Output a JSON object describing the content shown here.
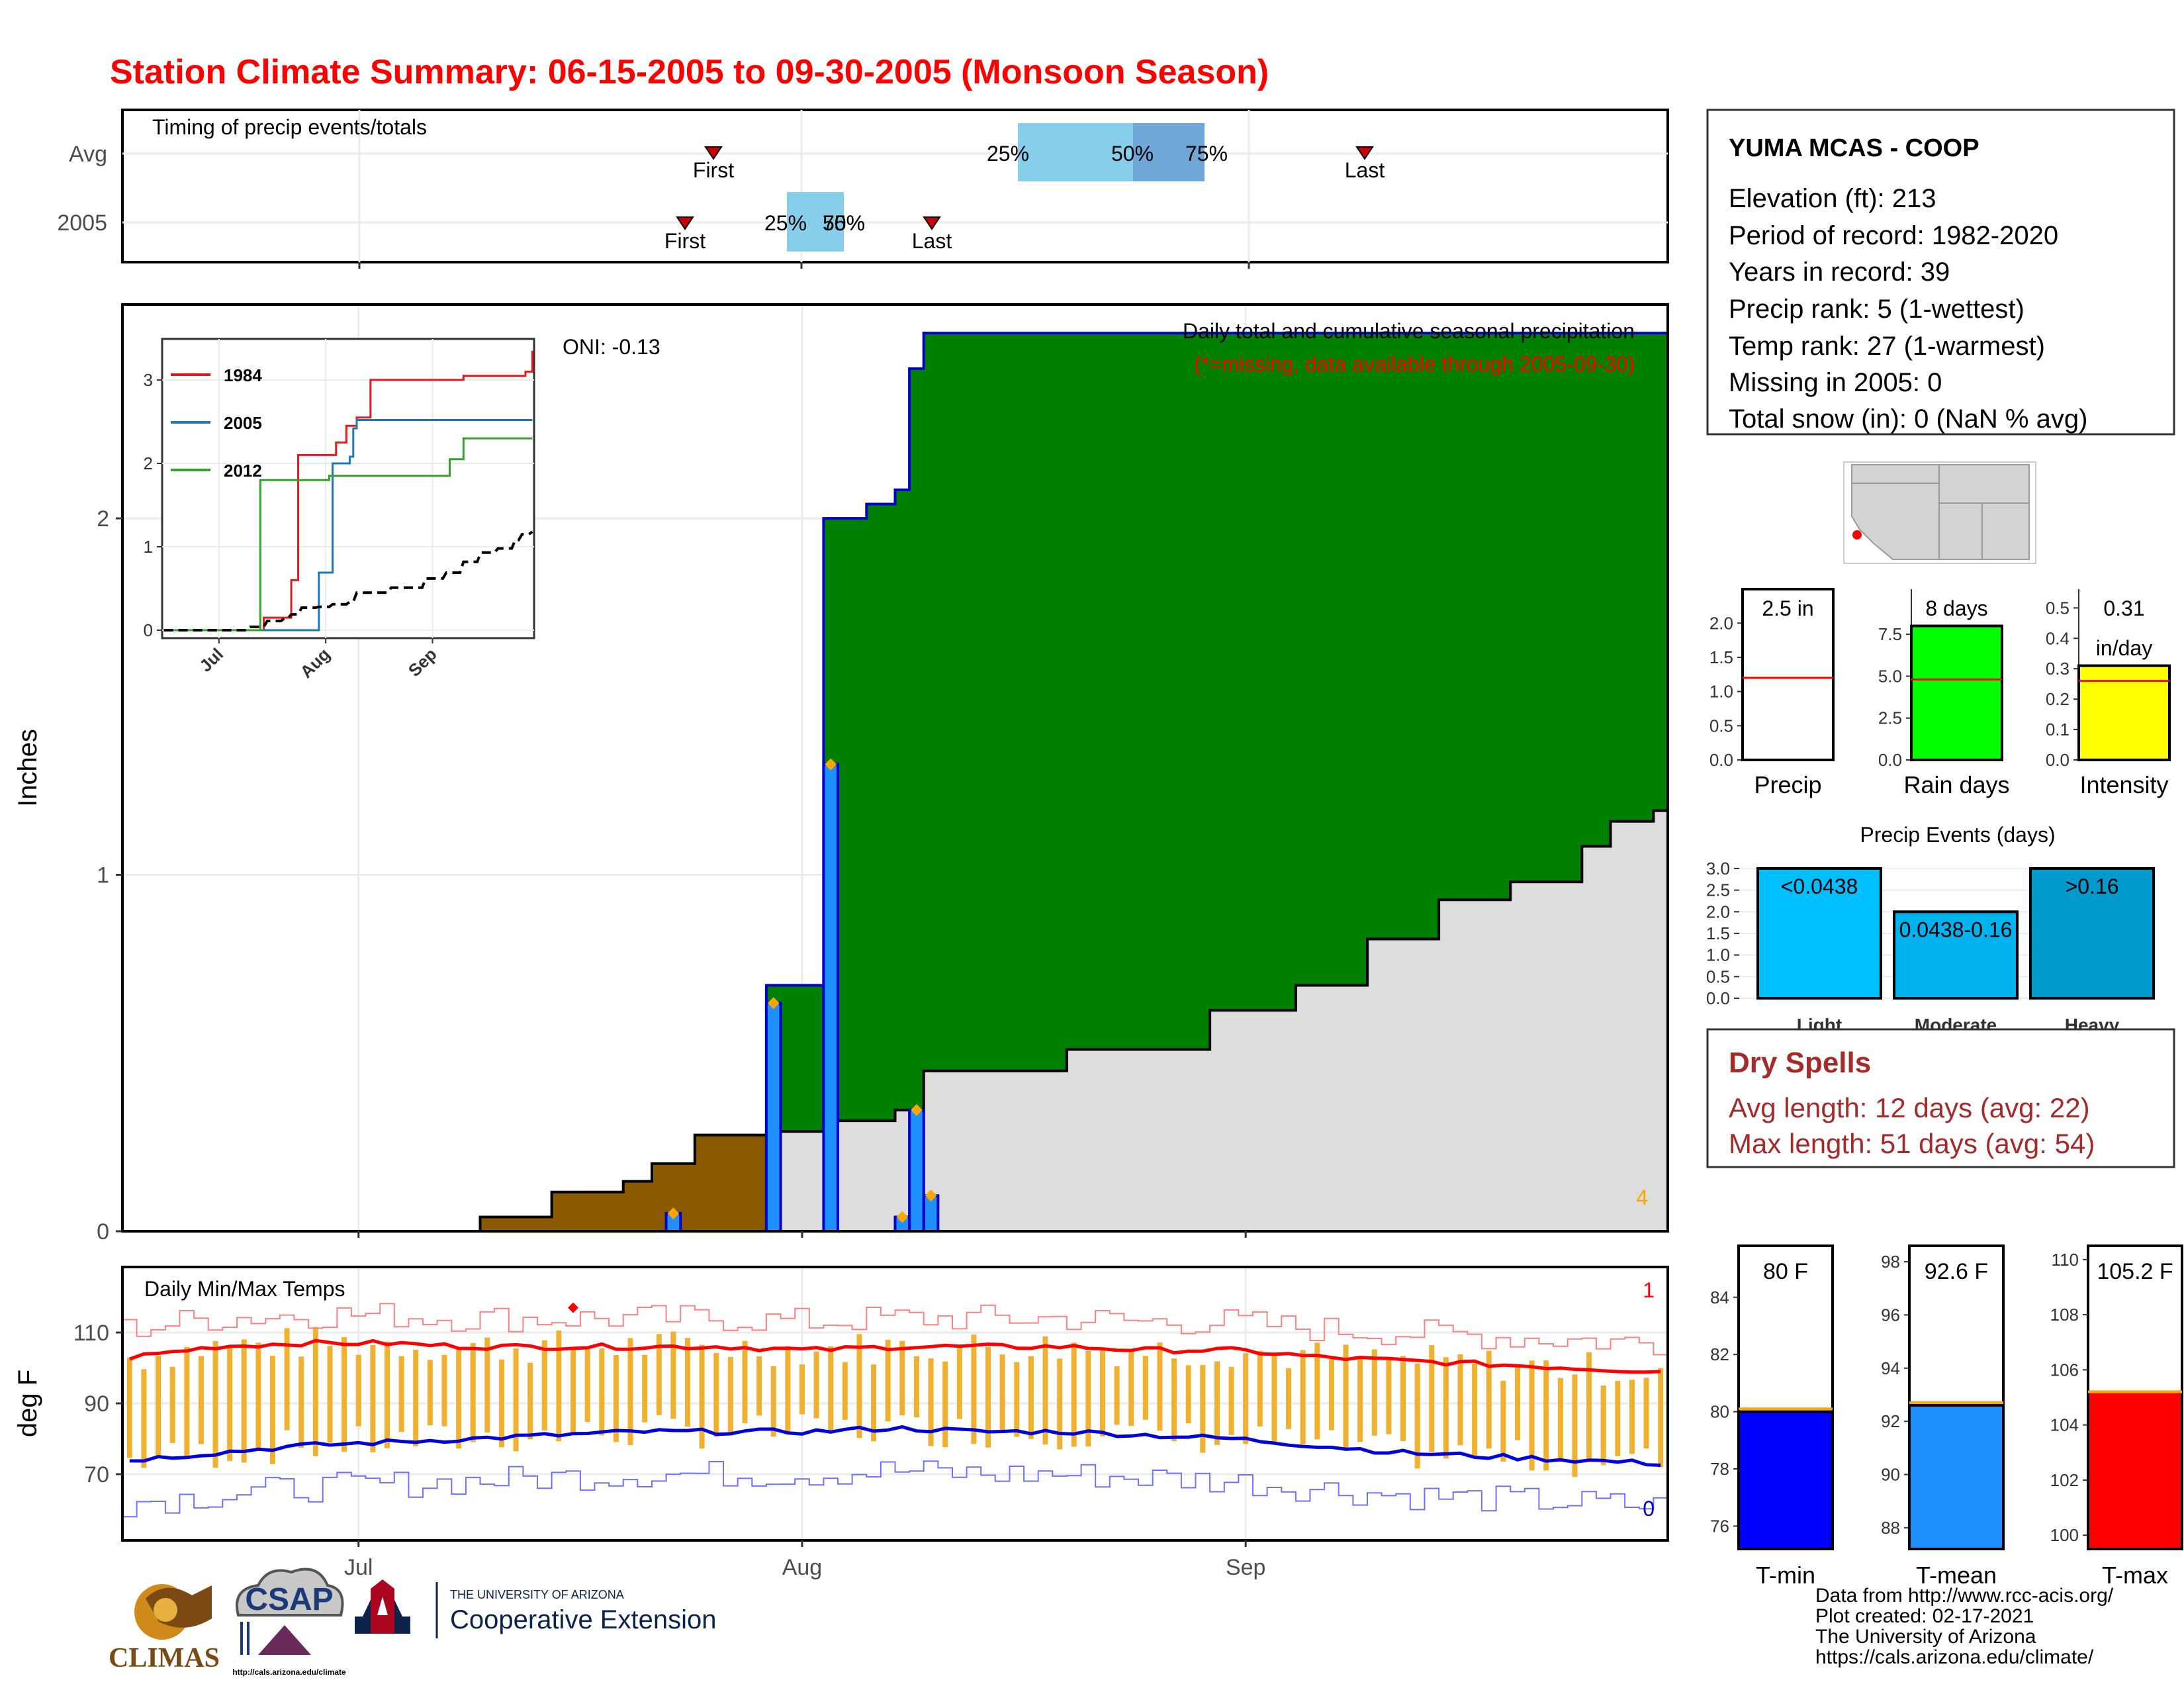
{
  "title": "Station Climate Summary: 06-15-2005 to 09-30-2005 (Monsoon Season)",
  "colors": {
    "title": "#ff0000",
    "cum2005": "#008000",
    "avgCum": "#dddddd",
    "deficit": "#8b5a00",
    "dailyBar": "#1e90ff",
    "avgDaily": "#1e4fd8",
    "tmaxLine": "#ff0000",
    "tminLine": "#0000dd",
    "rangeBar": "#f0b030",
    "dryspell": "#a52a2a"
  },
  "timing_panel": {
    "label": "Timing of precip events/totals",
    "rows": [
      "Avg",
      "2005"
    ],
    "avg": {
      "first": "First",
      "last": "Last",
      "p25": "25%",
      "p50": "50%",
      "p75": "75%"
    },
    "y2005": {
      "first": "First",
      "last": "Last",
      "p25": "25%",
      "p50": "50%",
      "p75": "75%"
    }
  },
  "precip_panel": {
    "ylabel": "Inches",
    "yticks": [
      "0",
      "1",
      "2"
    ],
    "oni": "ONI: -0.13",
    "subtitle1": "Daily total and cumulative seasonal precipitation",
    "subtitle2": "(*=missing, data available through 2005-09-30)",
    "corner_count": "4"
  },
  "inset": {
    "yticks": [
      "0",
      "1",
      "2",
      "3"
    ],
    "xticks": [
      "Jul",
      "Aug",
      "Sep"
    ],
    "legend": [
      {
        "name": "1984",
        "color": "#e31a1c"
      },
      {
        "name": "2005",
        "color": "#1f78b4"
      },
      {
        "name": "2012",
        "color": "#33a02c"
      }
    ]
  },
  "temp_panel": {
    "label": "Daily Min/Max Temps",
    "ylabel": "deg F",
    "yticks": [
      "70",
      "90",
      "110"
    ],
    "xticks": [
      "Jul",
      "Aug",
      "Sep"
    ],
    "max_count": "1",
    "min_count": "0"
  },
  "station": {
    "name": "YUMA MCAS - COOP",
    "lines": [
      "Elevation (ft): 213",
      "Period of record: 1982-2020",
      "Years in record: 39",
      "Precip rank: 5 (1-wettest)",
      "Temp rank: 27 (1-warmest)",
      "Missing in 2005: 0",
      "Total snow (in): 0 (NaN % avg)"
    ]
  },
  "summary_bars": [
    {
      "name": "Precip",
      "label": "2.5 in",
      "yticks": [
        "0.0",
        "0.5",
        "1.0",
        "1.5",
        "2.0"
      ],
      "color": "#ffffff"
    },
    {
      "name": "Rain days",
      "label": "8 days",
      "yticks": [
        "0.0",
        "2.5",
        "5.0",
        "7.5"
      ],
      "color": "#00ff00"
    },
    {
      "name": "Intensity",
      "label": "0.31",
      "label2": "in/day",
      "yticks": [
        "0.0",
        "0.1",
        "0.2",
        "0.3",
        "0.4",
        "0.5"
      ],
      "color": "#ffff00"
    }
  ],
  "events": {
    "title": "Precip Events (days)",
    "yticks": [
      "0.0",
      "0.5",
      "1.0",
      "1.5",
      "2.0",
      "2.5",
      "3.0"
    ],
    "bars": [
      {
        "name": "Light",
        "label": "<0.0438",
        "value": 3,
        "color": "#00bfff"
      },
      {
        "name": "Moderate",
        "label": "0.0438-0.16",
        "value": 2,
        "color": "#00b2ee"
      },
      {
        "name": "Heavy",
        "label": ">0.16",
        "value": 3,
        "color": "#009acd"
      }
    ]
  },
  "dry_spells": {
    "title": "Dry Spells",
    "avg": "Avg length: 12 days (avg: 22)",
    "max": "Max length: 51 days (avg: 54)"
  },
  "temp_bars": [
    {
      "name": "T-min",
      "label": "80 F",
      "yticks": [
        "76",
        "78",
        "80",
        "82",
        "84"
      ],
      "value": 80.0,
      "avg": 80.1,
      "color": "#0000ff"
    },
    {
      "name": "T-mean",
      "label": "92.6 F",
      "yticks": [
        "88",
        "90",
        "92",
        "94",
        "96",
        "98"
      ],
      "value": 92.6,
      "avg": 92.7,
      "color": "#1e90ff"
    },
    {
      "name": "T-max",
      "label": "105.2 F",
      "yticks": [
        "100",
        "102",
        "104",
        "106",
        "108",
        "110"
      ],
      "value": 105.2,
      "avg": 105.2,
      "color": "#ff0000"
    }
  ],
  "footer": {
    "climas": "CLIMAS",
    "csap": "CSAP",
    "csap_url": "http://cals.arizona.edu/climate",
    "ua_small": "THE UNIVERSITY OF ARIZONA",
    "ua_big": "Cooperative Extension",
    "credits": [
      "Data from http://www.rcc-acis.org/",
      "Plot created: 02-17-2021",
      "The University of Arizona",
      "https://cals.arizona.edu/climate/"
    ]
  },
  "chart_data": {
    "type": "area",
    "title": "Daily total and cumulative seasonal precipitation",
    "ylabel": "Inches",
    "ylim": [
      0,
      2.6
    ],
    "x_range": [
      "2005-06-15",
      "2005-09-30"
    ],
    "cumulative_2005": [
      {
        "date": "2005-06-15",
        "value": 0.0
      },
      {
        "date": "2005-07-29",
        "value": 0.0
      },
      {
        "date": "2005-07-30",
        "value": 0.69
      },
      {
        "date": "2005-08-02",
        "value": 0.69
      },
      {
        "date": "2005-08-03",
        "value": 2.0
      },
      {
        "date": "2005-08-06",
        "value": 2.04
      },
      {
        "date": "2005-08-08",
        "value": 2.08
      },
      {
        "date": "2005-08-09",
        "value": 2.42
      },
      {
        "date": "2005-08-10",
        "value": 2.52
      },
      {
        "date": "2005-09-30",
        "value": 2.52
      }
    ],
    "cumulative_avg": [
      {
        "date": "2005-06-15",
        "value": 0.0
      },
      {
        "date": "2005-06-30",
        "value": 0.0
      },
      {
        "date": "2005-07-10",
        "value": 0.04
      },
      {
        "date": "2005-07-15",
        "value": 0.11
      },
      {
        "date": "2005-07-20",
        "value": 0.14
      },
      {
        "date": "2005-07-22",
        "value": 0.19
      },
      {
        "date": "2005-07-25",
        "value": 0.27
      },
      {
        "date": "2005-07-30",
        "value": 0.28
      },
      {
        "date": "2005-08-03",
        "value": 0.31
      },
      {
        "date": "2005-08-08",
        "value": 0.34
      },
      {
        "date": "2005-08-10",
        "value": 0.45
      },
      {
        "date": "2005-08-20",
        "value": 0.51
      },
      {
        "date": "2005-08-30",
        "value": 0.62
      },
      {
        "date": "2005-09-05",
        "value": 0.69
      },
      {
        "date": "2005-09-10",
        "value": 0.82
      },
      {
        "date": "2005-09-15",
        "value": 0.93
      },
      {
        "date": "2005-09-20",
        "value": 0.98
      },
      {
        "date": "2005-09-25",
        "value": 1.08
      },
      {
        "date": "2005-09-27",
        "value": 1.15
      },
      {
        "date": "2005-09-30",
        "value": 1.18
      }
    ],
    "daily_2005": [
      {
        "date": "2005-07-23",
        "value": 0.05
      },
      {
        "date": "2005-07-30",
        "value": 0.64
      },
      {
        "date": "2005-08-03",
        "value": 1.31
      },
      {
        "date": "2005-08-08",
        "value": 0.04
      },
      {
        "date": "2005-08-09",
        "value": 0.34
      },
      {
        "date": "2005-08-10",
        "value": 0.1
      }
    ],
    "inset_series": [
      {
        "name": "1984",
        "points": [
          [
            "06-15",
            0
          ],
          [
            "07-12",
            0
          ],
          [
            "07-14",
            0.15
          ],
          [
            "07-20",
            0.15
          ],
          [
            "07-22",
            0.6
          ],
          [
            "07-24",
            2.1
          ],
          [
            "08-02",
            2.1
          ],
          [
            "08-04",
            2.25
          ],
          [
            "08-07",
            2.45
          ],
          [
            "08-10",
            2.55
          ],
          [
            "08-14",
            3.0
          ],
          [
            "09-10",
            3.05
          ],
          [
            "09-28",
            3.1
          ],
          [
            "09-30",
            3.35
          ]
        ]
      },
      {
        "name": "2005",
        "points": [
          [
            "06-15",
            0
          ],
          [
            "07-29",
            0
          ],
          [
            "07-30",
            0.69
          ],
          [
            "08-02",
            0.69
          ],
          [
            "08-03",
            2.0
          ],
          [
            "08-08",
            2.08
          ],
          [
            "08-09",
            2.42
          ],
          [
            "08-10",
            2.52
          ],
          [
            "09-30",
            2.52
          ]
        ]
      },
      {
        "name": "2012",
        "points": [
          [
            "06-15",
            0
          ],
          [
            "07-12",
            0
          ],
          [
            "07-13",
            1.8
          ],
          [
            "08-01",
            1.8
          ],
          [
            "08-02",
            1.85
          ],
          [
            "09-05",
            1.85
          ],
          [
            "09-06",
            2.05
          ],
          [
            "09-10",
            2.3
          ],
          [
            "09-30",
            2.3
          ]
        ]
      }
    ],
    "temps": {
      "ylabel": "deg F",
      "ylim": [
        52,
        122
      ],
      "avg_tmax": [
        103,
        106,
        107,
        107,
        106,
        106,
        106,
        106,
        105,
        106,
        106,
        106,
        105,
        105,
        103,
        102,
        101,
        100,
        99
      ],
      "avg_tmin": [
        74,
        76,
        78,
        79,
        80,
        81,
        82,
        82,
        82,
        83,
        82,
        82,
        81,
        80,
        78,
        76,
        75,
        74,
        73
      ],
      "tmax_first_day": "2005-06-15",
      "tmax_sample_every_days": 6
    }
  }
}
